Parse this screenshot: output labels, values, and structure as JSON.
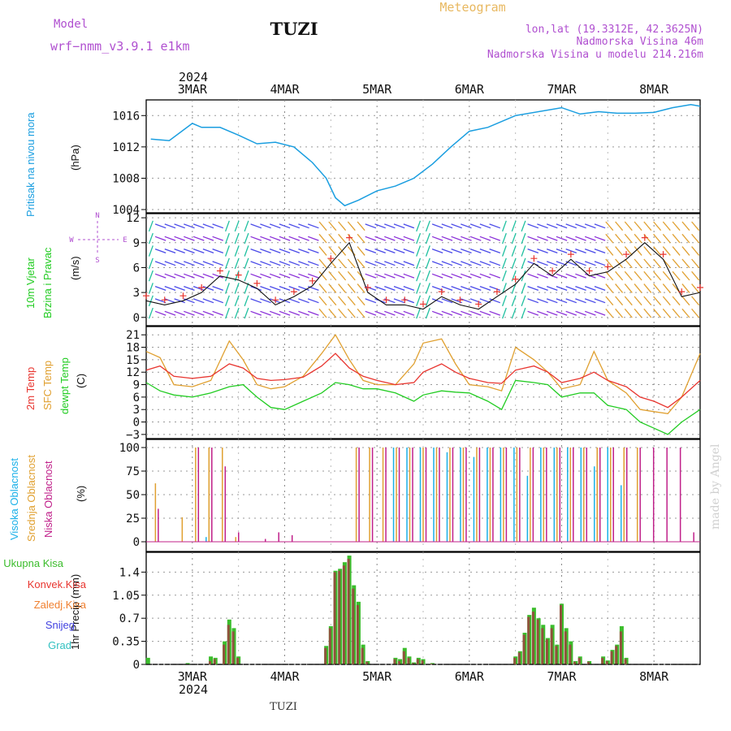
{
  "header": {
    "model_label": "Model",
    "model_name": "wrf−nmm_v3.9.1  e1km",
    "station": "TUZI",
    "meteogram": "Meteogram",
    "lonlat": "lon,lat (19.3312E, 42.3625N)",
    "elevation": "Nadmorska Visina 46m",
    "model_elevation": "Nadmorska Visina u modelu 214.216m",
    "footer_station": "TUZI",
    "watermark": "made by Angel"
  },
  "colors": {
    "pressure": "#1a9ee0",
    "t2m": "#e8352f",
    "tsfc": "#e0a030",
    "dewpt": "#22cc22",
    "high_cloud": "#1ab0e8",
    "mid_cloud": "#e0a030",
    "low_cloud": "#c0208a",
    "total_precip": "#3bbd2c",
    "conv_precip": "#a04040",
    "purple": "#b050d0",
    "orange_title": "#e8b860"
  },
  "time_axis": {
    "top_year": "2024",
    "bottom_year": "2024",
    "days": [
      "3MAR",
      "4MAR",
      "5MAR",
      "6MAR",
      "7MAR",
      "8MAR"
    ]
  },
  "panels": {
    "pressure": {
      "ylabel": "Pritisak na nivou mora",
      "unit": "(hPa)"
    },
    "wind": {
      "ylabel1": "10m Vjetar",
      "ylabel2": "Brzina i Pravac",
      "unit": "(m/s)",
      "compass_n": "N",
      "compass_s": "S",
      "compass_w": "W",
      "compass_e": "E"
    },
    "temp": {
      "ylabel1": "2m Temp",
      "ylabel2": "SFC Temp",
      "ylabel3": "dewpt Temp",
      "unit": "(C)"
    },
    "cloud": {
      "ylabel1": "Visoka Oblacnost",
      "ylabel2": "Srednja Oblacnost",
      "ylabel3": "Niska Oblacnost",
      "unit": "(%)"
    },
    "precip": {
      "unit": "1hr Precip (mm)",
      "legend": [
        "Ukupna Kisa",
        "Konvek.Kisa",
        "Zaledj.Kisa",
        "Snijeg",
        "Grad"
      ],
      "legend_colors": [
        "#3bbd2c",
        "#e8352f",
        "#f08030",
        "#4040e0",
        "#30c0c0"
      ]
    }
  },
  "chart_data": [
    {
      "type": "line",
      "panel": "pressure",
      "ylim": [
        1004,
        1018
      ],
      "yticks": [
        1004,
        1008,
        1012,
        1016
      ],
      "x_days": [
        2.55,
        2.75,
        3.0,
        3.1,
        3.3,
        3.5,
        3.7,
        3.9,
        4.1,
        4.3,
        4.45,
        4.55,
        4.65,
        4.8,
        5.0,
        5.2,
        5.4,
        5.6,
        5.8,
        6.0,
        6.2,
        6.5,
        7.0,
        7.2,
        7.4,
        7.6,
        7.8,
        8.0,
        8.2,
        8.4,
        8.5
      ],
      "series": [
        {
          "values": [
            1013,
            1012.8,
            1015,
            1014.5,
            1014.5,
            1013.5,
            1012.4,
            1012.6,
            1012,
            1010,
            1008,
            1005.5,
            1004.5,
            1005.2,
            1006.4,
            1007,
            1008,
            1009.8,
            1012,
            1014,
            1014.5,
            1016,
            1017,
            1016.2,
            1016.5,
            1016.3,
            1016.3,
            1016.4,
            1017,
            1017.4,
            1017.2
          ]
        }
      ]
    },
    {
      "type": "line",
      "panel": "temp",
      "ylim": [
        -4,
        23
      ],
      "yticks": [
        -3,
        0,
        3,
        6,
        9,
        12,
        15,
        18,
        21
      ],
      "x_days": [
        2.5,
        2.65,
        2.8,
        3.0,
        3.2,
        3.4,
        3.55,
        3.7,
        3.85,
        4.0,
        4.2,
        4.4,
        4.55,
        4.7,
        4.85,
        5.0,
        5.2,
        5.4,
        5.5,
        5.7,
        5.85,
        6.0,
        6.2,
        6.35,
        6.5,
        6.7,
        6.85,
        7.0,
        7.2,
        7.35,
        7.5,
        7.7,
        7.85,
        8.0,
        8.15,
        8.3,
        8.5
      ],
      "series": [
        {
          "name": "2m Temp",
          "values": [
            12.5,
            13.5,
            11,
            10.5,
            11,
            14,
            13,
            10.5,
            10,
            10.2,
            10.8,
            13.5,
            16.5,
            13,
            11,
            10,
            9,
            9.5,
            12,
            14,
            12,
            10.5,
            9.5,
            9.3,
            12.5,
            13.5,
            12,
            9.5,
            10.5,
            12,
            10,
            8.5,
            6,
            5,
            3.5,
            6,
            10
          ]
        },
        {
          "name": "SFC Temp",
          "values": [
            17,
            15.5,
            9,
            8.5,
            10,
            19.5,
            15,
            9,
            8,
            8.5,
            11,
            16.5,
            21,
            15,
            10,
            9,
            9,
            14,
            19,
            20,
            14,
            9,
            8.5,
            7.5,
            18,
            15,
            12,
            8,
            9,
            17,
            10,
            7,
            3,
            2.5,
            2,
            6,
            16.5
          ]
        },
        {
          "name": "dewpt Temp",
          "values": [
            9.5,
            7.5,
            6.5,
            6,
            7,
            8.5,
            9,
            6,
            3.5,
            3,
            5,
            7,
            9.5,
            9,
            8,
            8,
            7,
            5,
            6.5,
            7.5,
            7.2,
            7,
            5,
            3,
            10,
            9.5,
            9,
            6,
            7,
            7,
            4,
            3,
            0,
            -1.5,
            -3,
            0,
            3
          ]
        }
      ]
    },
    {
      "type": "bar",
      "panel": "cloud",
      "ylim": [
        0,
        100
      ],
      "yticks": [
        0,
        25,
        50,
        75,
        100
      ],
      "series": [
        {
          "name": "Visoka Oblacnost",
          "values": [
            0,
            0,
            0,
            0,
            5,
            0,
            0,
            0,
            0,
            0,
            0,
            0,
            0,
            0,
            0,
            0,
            0,
            0,
            100,
            100,
            100,
            100,
            95,
            100,
            90,
            100,
            100,
            100,
            70,
            100,
            100,
            100,
            100,
            80,
            100,
            60,
            0,
            0,
            0,
            0,
            0
          ]
        },
        {
          "name": "Srednja Oblacnost",
          "values": [
            62,
            0,
            26,
            100,
            100,
            100,
            5,
            0,
            0,
            0,
            0,
            0,
            0,
            0,
            0,
            100,
            100,
            100,
            100,
            100,
            100,
            100,
            100,
            100,
            100,
            100,
            100,
            100,
            100,
            100,
            100,
            100,
            100,
            100,
            100,
            100,
            100,
            0,
            0,
            0,
            0
          ]
        },
        {
          "name": "Niska Oblacnost",
          "values": [
            35,
            0,
            0,
            100,
            100,
            80,
            10,
            0,
            3,
            10,
            7,
            0,
            0,
            0,
            0,
            100,
            100,
            100,
            100,
            100,
            100,
            100,
            100,
            100,
            100,
            100,
            100,
            100,
            100,
            100,
            100,
            100,
            100,
            100,
            100,
            100,
            100,
            100,
            100,
            100,
            10
          ]
        }
      ]
    },
    {
      "type": "bar",
      "panel": "precip",
      "ylim": [
        0,
        1.7
      ],
      "yticks": [
        0,
        0.35,
        0.7,
        1.05,
        1.4
      ],
      "x_days": [
        2.52,
        2.95,
        3.2,
        3.25,
        3.35,
        3.4,
        3.45,
        3.5,
        4.45,
        4.5,
        4.55,
        4.6,
        4.65,
        4.7,
        4.75,
        4.8,
        4.85,
        4.9,
        5.2,
        5.25,
        5.3,
        5.35,
        5.4,
        5.45,
        5.5,
        5.6,
        6.5,
        6.55,
        6.6,
        6.65,
        6.7,
        6.75,
        6.8,
        6.85,
        6.9,
        6.95,
        7.0,
        7.05,
        7.1,
        7.15,
        7.2,
        7.3,
        7.45,
        7.5,
        7.55,
        7.6,
        7.65,
        7.7
      ],
      "series": [
        {
          "name": "Ukupna Kisa",
          "values": [
            0.1,
            0.02,
            0.12,
            0.1,
            0.35,
            0.68,
            0.55,
            0.12,
            0.28,
            0.58,
            1.42,
            1.45,
            1.55,
            1.65,
            1.2,
            0.95,
            0.3,
            0.05,
            0.1,
            0.08,
            0.25,
            0.12,
            0.03,
            0.1,
            0.08,
            0.02,
            0.12,
            0.2,
            0.48,
            0.75,
            0.86,
            0.7,
            0.6,
            0.4,
            0.6,
            0.3,
            0.92,
            0.55,
            0.35,
            0.05,
            0.12,
            0.05,
            0.12,
            0.06,
            0.22,
            0.3,
            0.58,
            0.1
          ]
        },
        {
          "name": "Konvek.Kisa",
          "values": [
            0,
            0,
            0.05,
            0.08,
            0.3,
            0.6,
            0.5,
            0.1,
            0.25,
            0.55,
            1.4,
            1.42,
            1.5,
            1.6,
            1.15,
            0.9,
            0.25,
            0.04,
            0.08,
            0.05,
            0.2,
            0.1,
            0.02,
            0.08,
            0.06,
            0.01,
            0.1,
            0.18,
            0.45,
            0.72,
            0.8,
            0.68,
            0.55,
            0.38,
            0.55,
            0.28,
            0.9,
            0.5,
            0.3,
            0.04,
            0.1,
            0.04,
            0.1,
            0.05,
            0.2,
            0.28,
            0.5,
            0.08
          ]
        }
      ]
    },
    {
      "type": "scatter",
      "panel": "wind",
      "ylim": [
        -1,
        12.5
      ],
      "yticks": [
        0,
        3,
        6,
        9,
        12
      ],
      "x_days": [
        2.5,
        2.7,
        2.9,
        3.1,
        3.3,
        3.5,
        3.7,
        3.9,
        4.1,
        4.3,
        4.5,
        4.7,
        4.9,
        5.1,
        5.3,
        5.5,
        5.7,
        5.9,
        6.1,
        6.3,
        6.5,
        6.7,
        6.9,
        7.1,
        7.3,
        7.5,
        7.7,
        7.9,
        8.1,
        8.3,
        8.5
      ],
      "series": [
        {
          "name": "speed",
          "values": [
            2,
            1.5,
            2,
            3,
            5,
            4.5,
            3.5,
            1.5,
            2.5,
            3.8,
            6.5,
            9,
            3,
            1.5,
            1.5,
            1,
            2.5,
            1.5,
            1,
            2.5,
            4,
            6.5,
            5,
            7,
            5,
            5.5,
            7,
            9,
            7,
            2.5,
            3
          ]
        }
      ]
    }
  ]
}
